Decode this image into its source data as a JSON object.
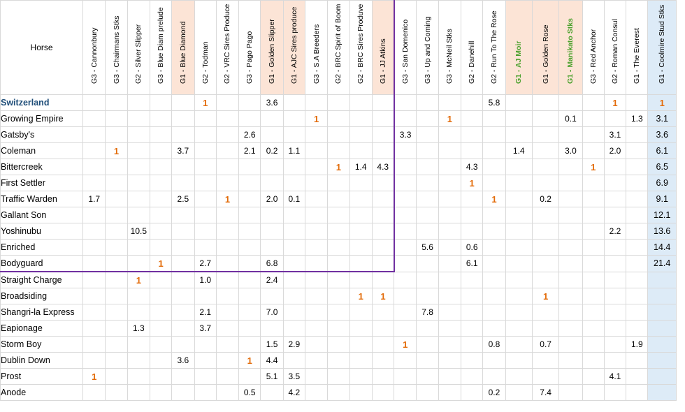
{
  "sheet": {
    "horse_header": "Horse",
    "columns": [
      {
        "label": "G3 - Cannonbury",
        "fill": "none",
        "label_color": "#000000"
      },
      {
        "label": "G3 - Chairmans Stks",
        "fill": "none",
        "label_color": "#000000"
      },
      {
        "label": "G2 - Silver Slipper",
        "fill": "none",
        "label_color": "#000000"
      },
      {
        "label": "G3 - Blue Diam prelude",
        "fill": "none",
        "label_color": "#000000"
      },
      {
        "label": "G1 - Blue Diamond",
        "fill": "#fce4d6",
        "label_color": "#000000"
      },
      {
        "label": "G2 - Todman",
        "fill": "none",
        "label_color": "#000000"
      },
      {
        "label": "G2 - VRC Sires Produce",
        "fill": "none",
        "label_color": "#000000"
      },
      {
        "label": "G3 - Pago Pago",
        "fill": "none",
        "label_color": "#000000"
      },
      {
        "label": "G1 - Golden Slipper",
        "fill": "#fce4d6",
        "label_color": "#000000"
      },
      {
        "label": "G1 - AJC Sires produce",
        "fill": "#fce4d6",
        "label_color": "#000000"
      },
      {
        "label": "G3 - S.A Breeders",
        "fill": "none",
        "label_color": "#000000"
      },
      {
        "label": "G2 - BRC Spirit of Boom",
        "fill": "none",
        "label_color": "#000000"
      },
      {
        "label": "G2 - BRC Sires Produve",
        "fill": "none",
        "label_color": "#000000"
      },
      {
        "label": "G1 - JJ Atkins",
        "fill": "#fce4d6",
        "label_color": "#000000"
      },
      {
        "label": "G3 - San Domenico",
        "fill": "none",
        "label_color": "#000000"
      },
      {
        "label": "G3 - Up and Coming",
        "fill": "none",
        "label_color": "#000000"
      },
      {
        "label": "G3 - McNeil Stks",
        "fill": "none",
        "label_color": "#000000"
      },
      {
        "label": "G2 - Danehill",
        "fill": "none",
        "label_color": "#000000"
      },
      {
        "label": "G2 - Run To The Rose",
        "fill": "none",
        "label_color": "#000000"
      },
      {
        "label": "G1 - AJ Moir",
        "fill": "#fce4d6",
        "label_color": "#4aa02c"
      },
      {
        "label": "G1 - Golden Rose",
        "fill": "#fce4d6",
        "label_color": "#000000"
      },
      {
        "label": "G1 - Manikato Stks",
        "fill": "#fce4d6",
        "label_color": "#4aa02c"
      },
      {
        "label": "G3 - Red Anchor",
        "fill": "none",
        "label_color": "#000000"
      },
      {
        "label": "G2 - Roman Consul",
        "fill": "none",
        "label_color": "#000000"
      },
      {
        "label": "G1 - The Everest",
        "fill": "none",
        "label_color": "#000000"
      },
      {
        "label": "G1 - Coolmire Stud Stks",
        "fill": "#ddebf7",
        "label_color": "#000000"
      }
    ],
    "rows": [
      {
        "horse": "Switzerland",
        "highlight": true,
        "cells": [
          "",
          "",
          "",
          "",
          "",
          "1",
          "",
          "",
          "3.6",
          "",
          "",
          "",
          "",
          "",
          "",
          "",
          "",
          "",
          "5.8",
          "",
          "",
          "",
          "",
          "1",
          "",
          "1"
        ]
      },
      {
        "horse": "Growing Empire",
        "highlight": false,
        "cells": [
          "",
          "",
          "",
          "",
          "",
          "",
          "",
          "",
          "",
          "",
          "1",
          "",
          "",
          "",
          "",
          "",
          "1",
          "",
          "",
          "",
          "",
          "0.1",
          "",
          "",
          "1.3",
          "3.1"
        ]
      },
      {
        "horse": "Gatsby's",
        "highlight": false,
        "cells": [
          "",
          "",
          "",
          "",
          "",
          "",
          "",
          "2.6",
          "",
          "",
          "",
          "",
          "",
          "",
          "3.3",
          "",
          "",
          "",
          "",
          "",
          "",
          "",
          "",
          "3.1",
          "",
          "3.6"
        ]
      },
      {
        "horse": "Coleman",
        "highlight": false,
        "cells": [
          "",
          "1",
          "",
          "",
          "3.7",
          "",
          "",
          "2.1",
          "0.2",
          "1.1",
          "",
          "",
          "",
          "",
          "",
          "",
          "",
          "",
          "",
          "1.4",
          "",
          "3.0",
          "",
          "2.0",
          "",
          "6.1"
        ]
      },
      {
        "horse": "Bittercreek",
        "highlight": false,
        "cells": [
          "",
          "",
          "",
          "",
          "",
          "",
          "",
          "",
          "",
          "",
          "",
          "1",
          "1.4",
          "4.3",
          "",
          "",
          "",
          "4.3",
          "",
          "",
          "",
          "",
          "1",
          "",
          "",
          "6.5"
        ]
      },
      {
        "horse": "First Settler",
        "highlight": false,
        "cells": [
          "",
          "",
          "",
          "",
          "",
          "",
          "",
          "",
          "",
          "",
          "",
          "",
          "",
          "",
          "",
          "",
          "",
          "1",
          "",
          "",
          "",
          "",
          "",
          "",
          "",
          "6.9"
        ]
      },
      {
        "horse": "Traffic Warden",
        "highlight": false,
        "cells": [
          "1.7",
          "",
          "",
          "",
          "2.5",
          "",
          "1",
          "",
          "2.0",
          "0.1",
          "",
          "",
          "",
          "",
          "",
          "",
          "",
          "",
          "1",
          "",
          "0.2",
          "",
          "",
          "",
          "",
          "9.1"
        ]
      },
      {
        "horse": "Gallant Son",
        "highlight": false,
        "cells": [
          "",
          "",
          "",
          "",
          "",
          "",
          "",
          "",
          "",
          "",
          "",
          "",
          "",
          "",
          "",
          "",
          "",
          "",
          "",
          "",
          "",
          "",
          "",
          "",
          "",
          "12.1"
        ]
      },
      {
        "horse": "Yoshinubu",
        "highlight": false,
        "cells": [
          "",
          "",
          "10.5",
          "",
          "",
          "",
          "",
          "",
          "",
          "",
          "",
          "",
          "",
          "",
          "",
          "",
          "",
          "",
          "",
          "",
          "",
          "",
          "",
          "2.2",
          "",
          "13.6"
        ]
      },
      {
        "horse": "Enriched",
        "highlight": false,
        "cells": [
          "",
          "",
          "",
          "",
          "",
          "",
          "",
          "",
          "",
          "",
          "",
          "",
          "",
          "",
          "",
          "5.6",
          "",
          "0.6",
          "",
          "",
          "",
          "",
          "",
          "",
          "",
          "14.4"
        ]
      },
      {
        "horse": "Bodyguard",
        "highlight": false,
        "cells": [
          "",
          "",
          "",
          "1",
          "",
          "2.7",
          "",
          "",
          "6.8",
          "",
          "",
          "",
          "",
          "",
          "",
          "",
          "",
          "6.1",
          "",
          "",
          "",
          "",
          "",
          "",
          "",
          "21.4"
        ]
      },
      {
        "horse": "Straight Charge",
        "highlight": false,
        "cells": [
          "",
          "",
          "1",
          "",
          "",
          "1.0",
          "",
          "",
          "2.4",
          "",
          "",
          "",
          "",
          "",
          "",
          "",
          "",
          "",
          "",
          "",
          "",
          "",
          "",
          "",
          "",
          ""
        ]
      },
      {
        "horse": "Broadsiding",
        "highlight": false,
        "cells": [
          "",
          "",
          "",
          "",
          "",
          "",
          "",
          "",
          "",
          "",
          "",
          "",
          "1",
          "1",
          "",
          "",
          "",
          "",
          "",
          "",
          "1",
          "",
          "",
          "",
          "",
          ""
        ]
      },
      {
        "horse": "Shangri-la Express",
        "highlight": false,
        "cells": [
          "",
          "",
          "",
          "",
          "",
          "2.1",
          "",
          "",
          "7.0",
          "",
          "",
          "",
          "",
          "",
          "",
          "7.8",
          "",
          "",
          "",
          "",
          "",
          "",
          "",
          "",
          "",
          ""
        ]
      },
      {
        "horse": "Eapionage",
        "highlight": false,
        "cells": [
          "",
          "",
          "1.3",
          "",
          "",
          "3.7",
          "",
          "",
          "",
          "",
          "",
          "",
          "",
          "",
          "",
          "",
          "",
          "",
          "",
          "",
          "",
          "",
          "",
          "",
          "",
          ""
        ]
      },
      {
        "horse": "Storm Boy",
        "highlight": false,
        "cells": [
          "",
          "",
          "",
          "",
          "",
          "",
          "",
          "",
          "1.5",
          "2.9",
          "",
          "",
          "",
          "",
          "1",
          "",
          "",
          "",
          "0.8",
          "",
          "0.7",
          "",
          "",
          "",
          "1.9",
          ""
        ]
      },
      {
        "horse": "Dublin Down",
        "highlight": false,
        "cells": [
          "",
          "",
          "",
          "",
          "3.6",
          "",
          "",
          "1",
          "4.4",
          "",
          "",
          "",
          "",
          "",
          "",
          "",
          "",
          "",
          "",
          "",
          "",
          "",
          "",
          "",
          "",
          ""
        ]
      },
      {
        "horse": "Prost",
        "highlight": false,
        "cells": [
          "1",
          "",
          "",
          "",
          "",
          "",
          "",
          "",
          "5.1",
          "3.5",
          "",
          "",
          "",
          "",
          "",
          "",
          "",
          "",
          "",
          "",
          "",
          "",
          "",
          "4.1",
          "",
          ""
        ]
      },
      {
        "horse": "Anode",
        "highlight": false,
        "cells": [
          "",
          "",
          "",
          "",
          "",
          "",
          "",
          "0.5",
          "",
          "4.2",
          "",
          "",
          "",
          "",
          "",
          "",
          "",
          "",
          "0.2",
          "",
          "7.4",
          "",
          "",
          "",
          "",
          ""
        ]
      }
    ],
    "colors": {
      "win": "#e36c0a",
      "highlight_name": "#1f4e79",
      "peach_fill": "#fce4d6",
      "total_fill": "#ddebf7",
      "purple_border": "#7030a0",
      "grid": "#d9d9d9"
    }
  }
}
